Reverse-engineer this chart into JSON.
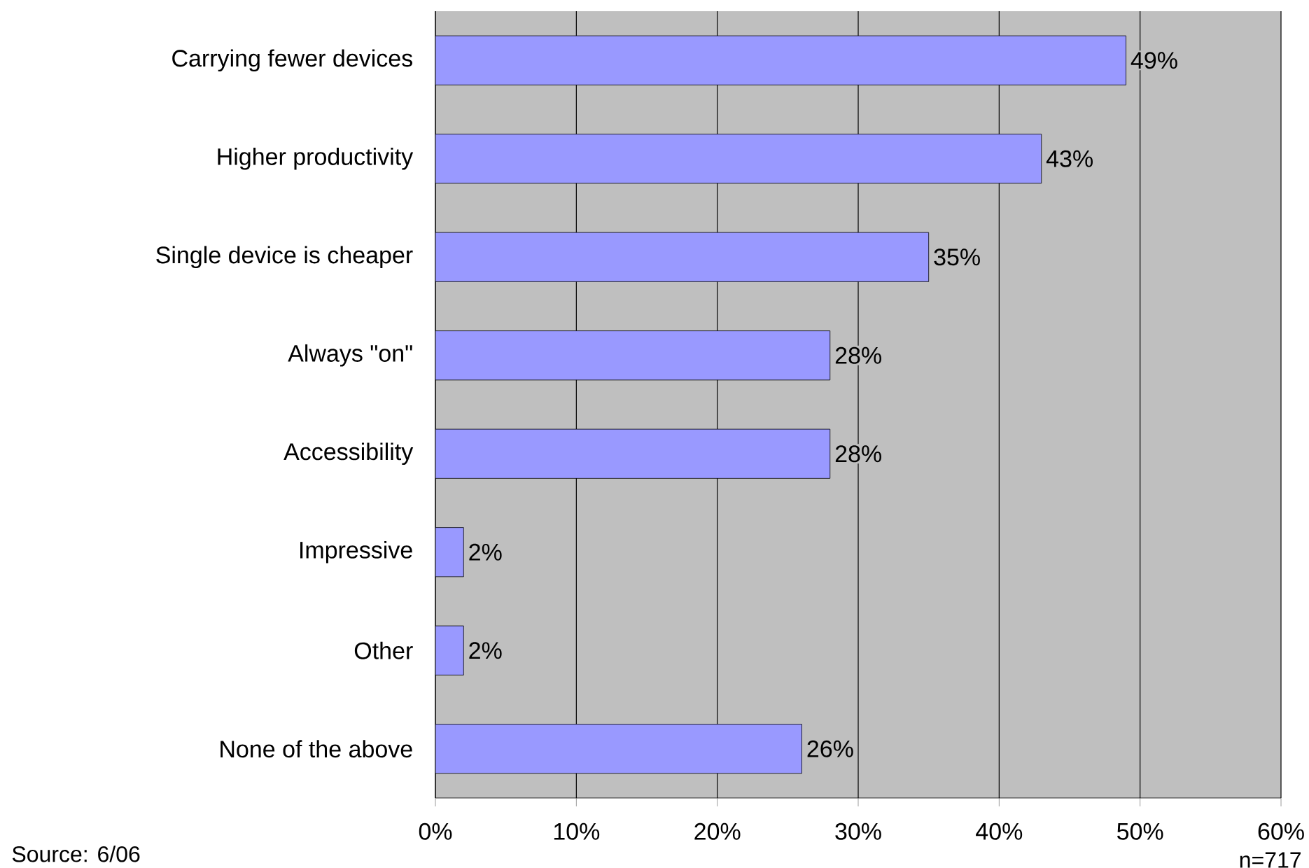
{
  "chart_data": {
    "type": "bar",
    "orientation": "horizontal",
    "categories": [
      "Carrying fewer devices",
      "Higher productivity",
      "Single device is cheaper",
      "Always \"on\"",
      "Accessibility",
      "Impressive",
      "Other",
      "None of the above"
    ],
    "values": [
      49,
      43,
      35,
      28,
      28,
      2,
      2,
      26
    ],
    "value_labels": [
      "49%",
      "43%",
      "35%",
      "28%",
      "28%",
      "2%",
      "2%",
      "26%"
    ],
    "color": "#9999ff",
    "xlim": [
      0,
      60
    ],
    "xticks": [
      {
        "value": 0,
        "label": "0%"
      },
      {
        "value": 10,
        "label": "10%"
      },
      {
        "value": 20,
        "label": "20%"
      },
      {
        "value": 30,
        "label": "30%"
      },
      {
        "value": 40,
        "label": "40%"
      },
      {
        "value": 50,
        "label": "50%"
      },
      {
        "value": 60,
        "label": "60%"
      }
    ],
    "grid": "x",
    "annotations": [
      "Source: 6/06",
      "n=717"
    ]
  }
}
